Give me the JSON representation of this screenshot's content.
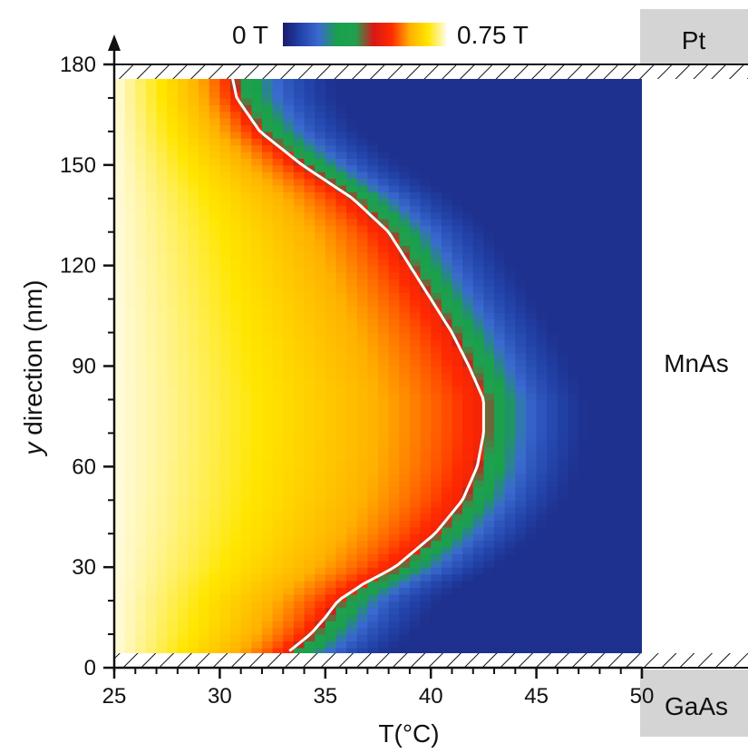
{
  "chart_data": {
    "type": "heatmap",
    "title": "",
    "xlabel": "T(°C)",
    "ylabel_prefix": "y",
    "ylabel_rest": " direction (nm)",
    "xlim": [
      25,
      50
    ],
    "ylim": [
      0,
      180
    ],
    "x_ticks": [
      25,
      30,
      35,
      40,
      45,
      50
    ],
    "y_ticks": [
      0,
      30,
      60,
      90,
      120,
      150,
      180
    ],
    "colorbar": {
      "min_label": "0 T",
      "max_label": "0.75 T",
      "min": 0,
      "max": 0.75,
      "colors": [
        "#1a1a6e",
        "#2244aa",
        "#3a6ad0",
        "#1aa04a",
        "#20a050",
        "#d81818",
        "#ff2a00",
        "#ffb000",
        "#ffe600",
        "#fffbe0"
      ]
    },
    "layer_data_y_range": [
      4,
      176
    ],
    "boundary_contour": {
      "label": "",
      "points": [
        {
          "y": 5,
          "x": 33.3
        },
        {
          "y": 10,
          "x": 34.3
        },
        {
          "y": 15,
          "x": 35.0
        },
        {
          "y": 20,
          "x": 35.6
        },
        {
          "y": 25,
          "x": 36.8
        },
        {
          "y": 30,
          "x": 38.3
        },
        {
          "y": 40,
          "x": 40.2
        },
        {
          "y": 50,
          "x": 41.5
        },
        {
          "y": 60,
          "x": 42.2
        },
        {
          "y": 70,
          "x": 42.5
        },
        {
          "y": 80,
          "x": 42.5
        },
        {
          "y": 90,
          "x": 41.8
        },
        {
          "y": 100,
          "x": 41.0
        },
        {
          "y": 110,
          "x": 40.0
        },
        {
          "y": 120,
          "x": 39.0
        },
        {
          "y": 130,
          "x": 38.0
        },
        {
          "y": 140,
          "x": 36.3
        },
        {
          "y": 150,
          "x": 33.9
        },
        {
          "y": 160,
          "x": 31.9
        },
        {
          "y": 170,
          "x": 30.8
        },
        {
          "y": 176,
          "x": 30.6
        }
      ]
    },
    "regions": {
      "top": "Pt",
      "middle": "MnAs",
      "bottom": "GaAs"
    }
  }
}
